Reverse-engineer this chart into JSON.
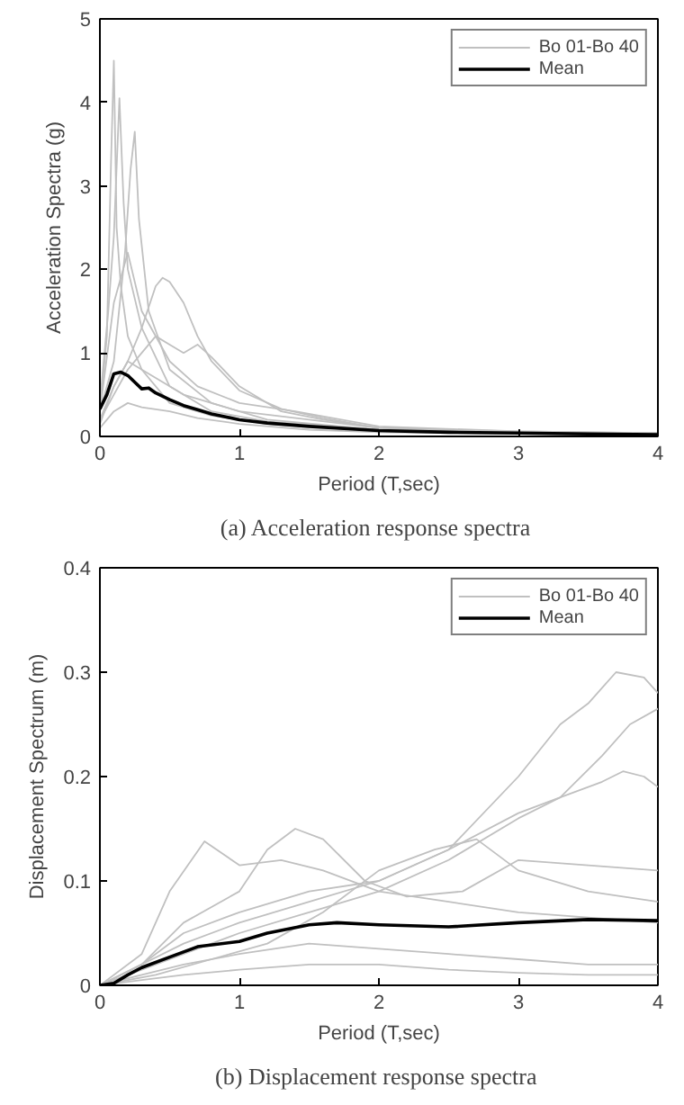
{
  "chart_data": [
    {
      "type": "line",
      "title": "(a)  Acceleration response spectra",
      "xlabel": "Period (T,sec)",
      "ylabel": "Acceleration Spectra (g)",
      "xlim": [
        0,
        4
      ],
      "ylim": [
        0,
        5
      ],
      "xticks": [
        0,
        1,
        2,
        3,
        4
      ],
      "yticks": [
        0,
        1,
        2,
        3,
        4,
        5
      ],
      "grid": false,
      "legend": "top right",
      "series": [
        {
          "name": "Bo 01-Bo 40",
          "color": "#c0c0c0",
          "x": [
            0,
            0.05,
            0.08,
            0.1,
            0.12,
            0.15,
            0.2,
            0.3,
            0.5,
            0.8,
            1.2,
            2,
            3,
            4
          ],
          "values": [
            0.3,
            1.2,
            3.3,
            4.5,
            2.5,
            1.8,
            1.2,
            0.8,
            0.4,
            0.25,
            0.15,
            0.06,
            0.03,
            0.02
          ]
        },
        {
          "color": "#c0c0c0",
          "x": [
            0,
            0.06,
            0.1,
            0.14,
            0.17,
            0.2,
            0.3,
            0.5,
            0.8,
            1.2,
            2,
            3,
            4
          ],
          "values": [
            0.4,
            1.5,
            2.4,
            4.05,
            2.8,
            2.0,
            1.3,
            0.6,
            0.3,
            0.18,
            0.08,
            0.04,
            0.03
          ]
        },
        {
          "color": "#c0c0c0",
          "x": [
            0,
            0.1,
            0.18,
            0.22,
            0.25,
            0.28,
            0.35,
            0.5,
            0.8,
            1.2,
            2,
            3,
            4
          ],
          "values": [
            0.3,
            0.9,
            2.2,
            3.2,
            3.65,
            2.6,
            1.5,
            0.8,
            0.4,
            0.2,
            0.08,
            0.05,
            0.03
          ]
        },
        {
          "color": "#c0c0c0",
          "x": [
            0,
            0.1,
            0.2,
            0.3,
            0.4,
            0.45,
            0.5,
            0.6,
            0.7,
            0.8,
            1,
            1.3,
            1.6,
            2,
            3,
            4
          ],
          "values": [
            0.2,
            0.6,
            0.9,
            1.3,
            1.8,
            1.9,
            1.85,
            1.6,
            1.2,
            0.9,
            0.55,
            0.33,
            0.22,
            0.1,
            0.05,
            0.03
          ]
        },
        {
          "color": "#c0c0c0",
          "x": [
            0,
            0.1,
            0.2,
            0.3,
            0.4,
            0.5,
            0.6,
            0.7,
            0.8,
            1,
            1.3,
            1.6,
            2,
            3,
            4
          ],
          "values": [
            0.2,
            0.5,
            0.8,
            1.0,
            1.2,
            1.1,
            1.0,
            1.1,
            0.95,
            0.6,
            0.3,
            0.2,
            0.1,
            0.05,
            0.04
          ]
        },
        {
          "color": "#c0c0c0",
          "x": [
            0,
            0.1,
            0.2,
            0.3,
            0.5,
            0.7,
            1,
            1.4,
            2,
            3,
            4
          ],
          "values": [
            0.3,
            1.6,
            2.2,
            1.5,
            0.9,
            0.6,
            0.4,
            0.3,
            0.12,
            0.06,
            0.04
          ]
        },
        {
          "color": "#c0c0c0",
          "x": [
            0,
            0.1,
            0.2,
            0.3,
            0.5,
            0.7,
            1,
            1.5,
            2,
            3,
            4
          ],
          "values": [
            0.1,
            0.3,
            0.4,
            0.35,
            0.3,
            0.22,
            0.15,
            0.08,
            0.05,
            0.03,
            0.02
          ]
        },
        {
          "color": "#c0c0c0",
          "x": [
            0,
            0.1,
            0.2,
            0.4,
            0.6,
            0.8,
            1,
            1.5,
            2,
            3,
            4
          ],
          "values": [
            0.15,
            0.6,
            0.9,
            0.7,
            0.5,
            0.4,
            0.3,
            0.2,
            0.1,
            0.06,
            0.04
          ]
        },
        {
          "name": "Mean",
          "color": "#000000",
          "x": [
            0,
            0.05,
            0.1,
            0.15,
            0.2,
            0.25,
            0.3,
            0.35,
            0.4,
            0.5,
            0.6,
            0.7,
            0.8,
            1,
            1.2,
            1.5,
            2,
            2.5,
            3,
            3.5,
            4
          ],
          "values": [
            0.33,
            0.5,
            0.75,
            0.77,
            0.73,
            0.65,
            0.57,
            0.58,
            0.52,
            0.44,
            0.37,
            0.32,
            0.27,
            0.2,
            0.16,
            0.12,
            0.07,
            0.05,
            0.04,
            0.03,
            0.02
          ]
        }
      ]
    },
    {
      "type": "line",
      "title": "(b)  Displacement response spectra",
      "xlabel": "Period (T,sec)",
      "ylabel": "Displacement Spectrum (m)",
      "xlim": [
        0,
        4
      ],
      "ylim": [
        0,
        0.4
      ],
      "xticks": [
        0,
        1,
        2,
        3,
        4
      ],
      "yticks": [
        0,
        0.1,
        0.2,
        0.3,
        0.4
      ],
      "grid": false,
      "legend": "top right",
      "series": [
        {
          "name": "Bo 01-Bo 40",
          "color": "#c0c0c0",
          "x": [
            0,
            0.3,
            0.6,
            1,
            1.5,
            2,
            2.5,
            3,
            3.3,
            3.5,
            3.7,
            3.9,
            4
          ],
          "values": [
            0,
            0.02,
            0.04,
            0.06,
            0.08,
            0.1,
            0.13,
            0.2,
            0.25,
            0.27,
            0.3,
            0.295,
            0.28
          ]
        },
        {
          "color": "#c0c0c0",
          "x": [
            0,
            0.3,
            0.6,
            1,
            1.5,
            2,
            2.5,
            3,
            3.3,
            3.6,
            3.8,
            4
          ],
          "values": [
            0,
            0.015,
            0.03,
            0.05,
            0.07,
            0.09,
            0.12,
            0.16,
            0.18,
            0.22,
            0.25,
            0.265
          ]
        },
        {
          "color": "#c0c0c0",
          "x": [
            0,
            0.3,
            0.6,
            1,
            1.5,
            2,
            2.5,
            3,
            3.3,
            3.5,
            3.6,
            3.75,
            3.9,
            4
          ],
          "values": [
            0,
            0.02,
            0.05,
            0.07,
            0.09,
            0.1,
            0.13,
            0.165,
            0.18,
            0.19,
            0.195,
            0.205,
            0.2,
            0.19
          ]
        },
        {
          "color": "#c0c0c0",
          "x": [
            0,
            0.3,
            0.5,
            0.75,
            1,
            1.3,
            1.6,
            2,
            2.5,
            3,
            3.5,
            4
          ],
          "values": [
            0,
            0.03,
            0.09,
            0.138,
            0.115,
            0.12,
            0.11,
            0.09,
            0.08,
            0.07,
            0.065,
            0.06
          ]
        },
        {
          "color": "#c0c0c0",
          "x": [
            0,
            0.3,
            0.6,
            1,
            1.2,
            1.4,
            1.6,
            1.9,
            2.2,
            2.6,
            3,
            3.5,
            4
          ],
          "values": [
            0,
            0.02,
            0.06,
            0.09,
            0.13,
            0.15,
            0.14,
            0.1,
            0.085,
            0.09,
            0.12,
            0.115,
            0.11
          ]
        },
        {
          "color": "#c0c0c0",
          "x": [
            0,
            0.4,
            0.8,
            1.2,
            1.6,
            2,
            2.4,
            2.7,
            3,
            3.5,
            4
          ],
          "values": [
            0,
            0.01,
            0.025,
            0.04,
            0.07,
            0.11,
            0.13,
            0.14,
            0.11,
            0.09,
            0.08
          ]
        },
        {
          "color": "#c0c0c0",
          "x": [
            0,
            0.3,
            0.6,
            1,
            1.5,
            2,
            2.5,
            3,
            3.5,
            4
          ],
          "values": [
            0,
            0.01,
            0.02,
            0.03,
            0.04,
            0.035,
            0.03,
            0.025,
            0.02,
            0.02
          ]
        },
        {
          "color": "#c0c0c0",
          "x": [
            0,
            0.3,
            0.6,
            1,
            1.5,
            2,
            2.5,
            3,
            3.5,
            4
          ],
          "values": [
            0,
            0.005,
            0.01,
            0.015,
            0.02,
            0.02,
            0.015,
            0.012,
            0.01,
            0.01
          ]
        },
        {
          "name": "Mean",
          "color": "#000000",
          "x": [
            0,
            0.1,
            0.2,
            0.3,
            0.5,
            0.7,
            1,
            1.2,
            1.5,
            1.7,
            2,
            2.5,
            3,
            3.5,
            4
          ],
          "values": [
            0,
            0.002,
            0.01,
            0.017,
            0.027,
            0.037,
            0.042,
            0.05,
            0.058,
            0.06,
            0.058,
            0.056,
            0.06,
            0.063,
            0.062
          ]
        }
      ]
    }
  ]
}
